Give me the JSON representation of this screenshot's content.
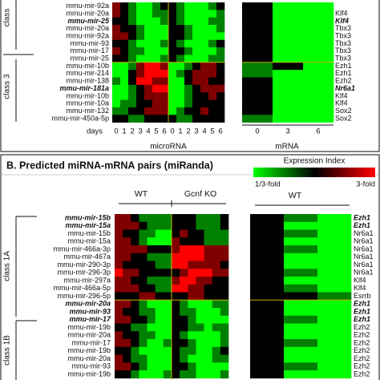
{
  "color_scale": {
    "low": "#00ff00",
    "mid": "#000000",
    "high": "#ff0000"
  },
  "panel_a": {
    "class_labels": [
      "class",
      "class 3"
    ],
    "mirna_labels": [
      "mmu-mir-92a",
      "mmu-mir-20a",
      "mmu-mir-25",
      "mmu-mir-20a",
      "mmu-mir-92a",
      "mmu-mir-93",
      "mmu-mir-17",
      "mmu-mir-25",
      "mmu-mir-10b",
      "mmu-mir-214",
      "mmu-mir-138",
      "mmu-mir-181a",
      "mmu-mir-10b",
      "mmu-mir-10a",
      "mmu-mir-132",
      "mmu-mir-450a-5p"
    ],
    "target_labels": [
      null,
      "Klf4",
      "Klf4",
      "Tbx3",
      "Tbx3",
      "Tbx3",
      "Tbx3",
      "Tbx3",
      "Ezh1",
      "Ezh1",
      "Ezh2",
      "Nr6a1",
      "Klf4",
      "Klf4",
      "Sox2",
      "Sox2"
    ],
    "emphasized_rows": [
      2,
      11
    ],
    "days_label": "days",
    "days": [
      0,
      1,
      2,
      3,
      4,
      5,
      6
    ],
    "mrna_days": [
      0,
      3,
      6
    ],
    "mirna_axis_label": "microRNA",
    "mrna_axis_label": "mRNA",
    "mirna_values": [
      [
        0.5,
        0,
        -0.5,
        -1,
        -1,
        -0.5,
        0,
        0,
        -0.5,
        -1,
        -1,
        -1,
        -0.5,
        0
      ],
      [
        0.5,
        0,
        -0.5,
        -1,
        -1,
        -0.5,
        -0.5,
        0,
        -0.5,
        -1,
        -1,
        -1,
        -1,
        -0.5
      ],
      [
        0,
        0,
        -0.5,
        -1,
        -1,
        -1,
        -0.5,
        0,
        -0.5,
        -1,
        -1,
        -1,
        -0.5,
        -0.5
      ],
      [
        0.5,
        0,
        0,
        -0.5,
        -1,
        -1,
        -1,
        0,
        0,
        -0.5,
        -1,
        -1,
        -1,
        -0.5
      ],
      [
        0.5,
        0.5,
        0,
        -0.5,
        -1,
        -1,
        -1,
        0,
        0,
        -0.5,
        -1,
        -1,
        -1,
        -1
      ],
      [
        0,
        0,
        -0.5,
        -1,
        -1,
        -1,
        -0.5,
        0,
        -0.5,
        -1,
        -1,
        -1,
        -0.5,
        0
      ],
      [
        0.5,
        0,
        -0.5,
        -0.5,
        -1,
        -1,
        -1,
        0,
        0,
        -0.5,
        -1,
        -1,
        -1,
        -0.5
      ],
      [
        0,
        0,
        -0.5,
        -1,
        -1,
        -1,
        -0.5,
        0,
        -0.5,
        -1,
        -1,
        -1,
        -0.5,
        -0.5
      ],
      [
        -1,
        -1,
        -0.5,
        0.5,
        1,
        1,
        0.5,
        -1,
        -1,
        -0.5,
        0,
        0.5,
        0.5,
        0
      ],
      [
        -1,
        -1,
        0,
        0.5,
        1,
        1,
        1,
        -1,
        -0.5,
        0,
        0.5,
        0.5,
        0.5,
        0
      ],
      [
        -0.5,
        -1,
        0,
        1,
        1,
        0.5,
        0.5,
        -1,
        -1,
        0,
        0.5,
        0.5,
        0,
        0
      ],
      [
        -1,
        -1,
        -0.5,
        0,
        0.5,
        1,
        1,
        -1,
        -1,
        -0.5,
        0,
        0.5,
        0.5,
        0.5
      ],
      [
        -1,
        -1,
        -0.5,
        0,
        0.5,
        0.5,
        0.5,
        -1,
        -1,
        -0.5,
        0,
        0,
        0.5,
        0
      ],
      [
        -1,
        -0.5,
        -0.5,
        0,
        0,
        0.5,
        0.5,
        -1,
        -1,
        -0.5,
        0,
        0,
        0,
        0
      ],
      [
        -0.5,
        -0.5,
        0,
        0,
        0.5,
        0.5,
        0.5,
        -1,
        -0.5,
        0,
        0,
        0.5,
        0,
        0
      ],
      [
        0,
        0,
        -0.5,
        -0.5,
        0,
        0,
        0,
        0,
        -0.5,
        -0.5,
        0,
        0,
        0,
        0
      ]
    ],
    "mrna_values": [
      [
        0,
        -1,
        -1
      ],
      [
        0,
        -1,
        -1
      ],
      [
        0,
        -1,
        -1
      ],
      [
        0,
        -1,
        -1
      ],
      [
        0,
        -1,
        -1
      ],
      [
        0,
        -1,
        -1
      ],
      [
        0,
        -1,
        -1
      ],
      [
        0,
        -1,
        -1
      ],
      [
        -0.5,
        0,
        -1
      ],
      [
        -0.5,
        -1,
        -1
      ],
      [
        0,
        -1,
        -1
      ],
      [
        0,
        -1,
        -1
      ],
      [
        0,
        -1,
        -1
      ],
      [
        0,
        -1,
        -1
      ],
      [
        0,
        -1,
        -1
      ],
      [
        -0.5,
        -1,
        -1
      ]
    ]
  },
  "panel_b": {
    "title": "B. Predicted miRNA-mRNA pairs (miRanda)",
    "legend": {
      "title": "Expression Index",
      "low_label": "1/3-fold",
      "high_label": "3-fold"
    },
    "group_labels": [
      "WT",
      "Gcnf KO"
    ],
    "mrna_group_label": "WT",
    "class_labels": [
      "class 1A",
      "class 1B"
    ],
    "mirna_labels": [
      "mmu-mir-15b",
      "mmu-mir-15a",
      "mmu-mir-15b",
      "mmu-mir-15a",
      "mmu-mir-466a-3p",
      "mmu-mir-467a",
      "mmu-mir-290-3p",
      "mmu-mir-296-3p",
      "mmu-mir-297a",
      "mmu-mir-466a-5p",
      "mmu-mir-296-5p",
      "mmu-mir-20a",
      "mmu-mir-93",
      "mmu-mir-17",
      "mmu-mir-19b",
      "mmu-mir-20a",
      "mmu-mir-17",
      "mmu-mir-19b",
      "mmu-mir-20a",
      "mmu-mir-93",
      "mmu-mir-19b"
    ],
    "target_labels": [
      "Ezh1",
      "Ezh1",
      "Nr6a1",
      "Nr6a1",
      "Nr6a1",
      "Nr6a1",
      "Nr6a1",
      "Nr6a1",
      "Klf4",
      "Klf4",
      "Esrrb",
      "Ezh1",
      "Ezh1",
      "Ezh1",
      "Ezh2",
      "Ezh2",
      "Ezh2",
      "Ezh2",
      "Ezh2",
      "Ezh2",
      "Ezh2"
    ],
    "emphasized_rows": [
      0,
      1,
      11,
      12,
      13
    ],
    "mirna_values": [
      [
        0.5,
        0.5,
        0,
        -0.5,
        -0.5,
        -0.5,
        -0.5,
        0,
        0,
        0,
        -0.5,
        -0.5,
        -0.5,
        0
      ],
      [
        0.5,
        0.5,
        0.5,
        0,
        -0.5,
        -0.5,
        -0.5,
        0,
        0,
        0,
        -0.5,
        -0.5,
        -0.5,
        0
      ],
      [
        0.5,
        0,
        0,
        -0.5,
        -0.5,
        -1,
        -1,
        0,
        0.5,
        0,
        0,
        -0.5,
        -0.5,
        -0.5
      ],
      [
        0.5,
        0.5,
        0,
        -0.5,
        -1,
        -1,
        -1,
        0.5,
        0,
        0,
        0,
        -0.5,
        -0.5,
        -0.5
      ],
      [
        0.5,
        0.5,
        0.5,
        0.5,
        0,
        0,
        0,
        0.5,
        1,
        1,
        1,
        0.5,
        0.5,
        0.5
      ],
      [
        0.5,
        0.5,
        0,
        0,
        -0.5,
        -0.5,
        -0.5,
        1,
        1,
        1,
        1,
        0.5,
        0.5,
        0.5
      ],
      [
        0.5,
        0,
        0,
        0,
        0,
        -0.5,
        -0.5,
        1,
        1,
        0.5,
        0.5,
        0.5,
        0.5,
        0
      ],
      [
        1,
        0.5,
        0.5,
        0,
        0,
        0,
        0,
        0,
        0.5,
        1,
        1,
        1,
        0.5,
        0.5
      ],
      [
        0.5,
        0.5,
        0,
        0,
        -0.5,
        -0.5,
        -0.5,
        0.5,
        1,
        1,
        0.5,
        0.5,
        0,
        0
      ],
      [
        0.5,
        0.5,
        0.5,
        0,
        0,
        -0.5,
        -0.5,
        1,
        1,
        0.5,
        0.5,
        0,
        0,
        0
      ],
      [
        0,
        0,
        0,
        0.5,
        0.5,
        0,
        0,
        0,
        0,
        0.5,
        0.5,
        0,
        0,
        0
      ],
      [
        0.5,
        0.5,
        0,
        -0.5,
        -1,
        -1,
        -1,
        0,
        -0.5,
        -1,
        -1,
        -1,
        -0.5,
        -0.5
      ],
      [
        0.5,
        0,
        0,
        -0.5,
        -0.5,
        -1,
        -1,
        0,
        -0.5,
        -0.5,
        -1,
        -1,
        -1,
        -0.5
      ],
      [
        0.5,
        0.5,
        0,
        0,
        -0.5,
        -1,
        -1,
        0,
        0,
        -0.5,
        -1,
        -1,
        -1,
        -1
      ],
      [
        0,
        0,
        -0.5,
        -0.5,
        -1,
        -1,
        -1,
        0,
        0,
        -0.5,
        -0.5,
        -1,
        -0.5,
        -0.5
      ],
      [
        0.5,
        0,
        0,
        -0.5,
        -0.5,
        -1,
        -1,
        0,
        -0.5,
        -1,
        -1,
        -1,
        -1,
        -0.5
      ],
      [
        0.5,
        0.5,
        0,
        -0.5,
        -1,
        -1,
        -0.5,
        0,
        0,
        -0.5,
        -1,
        -1,
        -1,
        -0.5
      ],
      [
        0,
        0,
        -0.5,
        -1,
        -1,
        -1,
        -1,
        0,
        -0.5,
        -0.5,
        -1,
        -1,
        -0.5,
        0
      ],
      [
        0.5,
        0,
        -0.5,
        -0.5,
        -1,
        -1,
        -1,
        0,
        -0.5,
        -1,
        -1,
        -1,
        -0.5,
        -0.5
      ],
      [
        0.5,
        0.5,
        0,
        -0.5,
        -1,
        -1,
        -1,
        0,
        0,
        -0.5,
        -1,
        -1,
        -1,
        -1
      ],
      [
        0,
        0,
        -0.5,
        -1,
        -1,
        -1,
        -0.5,
        0,
        -0.5,
        -0.5,
        -1,
        -1,
        -1,
        -0.5
      ]
    ],
    "mrna_values": [
      [
        0,
        -0.5,
        -1
      ],
      [
        0,
        -1,
        -1
      ],
      [
        0,
        -0.5,
        -1
      ],
      [
        0,
        -1,
        -1
      ],
      [
        0,
        -0.5,
        -1
      ],
      [
        0,
        -1,
        -1
      ],
      [
        0,
        -1,
        -1
      ],
      [
        0,
        -0.5,
        -1
      ],
      [
        0,
        -1,
        -1
      ],
      [
        0,
        -0.5,
        -1
      ],
      [
        0,
        0,
        -0.5
      ],
      [
        0,
        -1,
        -1
      ],
      [
        0,
        -1,
        -1
      ],
      [
        0,
        -0.5,
        -1
      ],
      [
        0,
        -1,
        -1
      ],
      [
        0,
        -1,
        -1
      ],
      [
        0,
        -0.5,
        -1
      ],
      [
        0,
        -1,
        -1
      ],
      [
        0,
        -1,
        -1
      ],
      [
        0,
        -0.5,
        -1
      ],
      [
        0,
        -1,
        -1
      ]
    ]
  }
}
